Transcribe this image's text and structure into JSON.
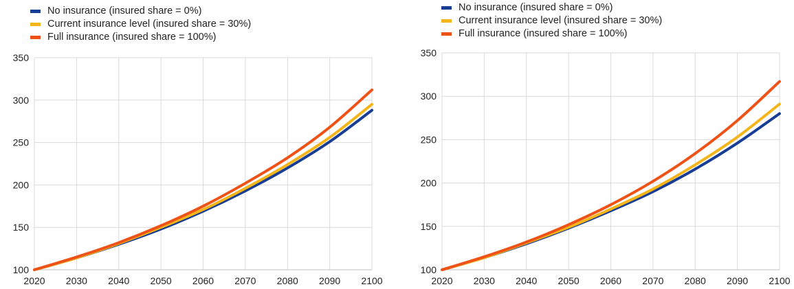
{
  "chart_data": [
    {
      "type": "line",
      "title": "",
      "xlabel": "",
      "ylabel": "",
      "xlim": [
        2020,
        2100
      ],
      "ylim": [
        100,
        350
      ],
      "xticks": [
        "2020",
        "2030",
        "2040",
        "2050",
        "2060",
        "2070",
        "2080",
        "2090",
        "2100"
      ],
      "yticks": [
        "100",
        "150",
        "200",
        "250",
        "300",
        "350"
      ],
      "grid": true,
      "legend_position": "top-left",
      "x": [
        2020,
        2030,
        2040,
        2050,
        2060,
        2070,
        2080,
        2090,
        2100
      ],
      "series": [
        {
          "name": "No insurance (insured share = 0%)",
          "color": "#173d95",
          "values": [
            100,
            114,
            130,
            148,
            169,
            193,
            220,
            251,
            288
          ]
        },
        {
          "name": "Current insurance level (insured share = 30%)",
          "color": "#f4b51b",
          "values": [
            100,
            114,
            131,
            150,
            171,
            196,
            224,
            256,
            295
          ]
        },
        {
          "name": "Full insurance (insured share = 100%)",
          "color": "#ef5216",
          "values": [
            100,
            115,
            132,
            152,
            175,
            202,
            232,
            268,
            312
          ]
        }
      ]
    },
    {
      "type": "line",
      "title": "",
      "xlabel": "",
      "ylabel": "",
      "xlim": [
        2020,
        2100
      ],
      "ylim": [
        100,
        350
      ],
      "xticks": [
        "2020",
        "2030",
        "2040",
        "2050",
        "2060",
        "2070",
        "2080",
        "2090",
        "2100"
      ],
      "yticks": [
        "100",
        "150",
        "200",
        "250",
        "300",
        "350"
      ],
      "grid": true,
      "legend_position": "top-left",
      "x": [
        2020,
        2030,
        2040,
        2050,
        2060,
        2070,
        2080,
        2090,
        2100
      ],
      "series": [
        {
          "name": "No insurance (insured share = 0%)",
          "color": "#173d95",
          "values": [
            100,
            114,
            130,
            148,
            168,
            190,
            216,
            246,
            280
          ]
        },
        {
          "name": "Current insurance level (insured share = 30%)",
          "color": "#f4b51b",
          "values": [
            100,
            114,
            131,
            149,
            170,
            193,
            221,
            253,
            291
          ]
        },
        {
          "name": "Full insurance (insured share = 100%)",
          "color": "#ef5216",
          "values": [
            100,
            115,
            132,
            152,
            175,
            202,
            234,
            272,
            317
          ]
        }
      ]
    }
  ]
}
